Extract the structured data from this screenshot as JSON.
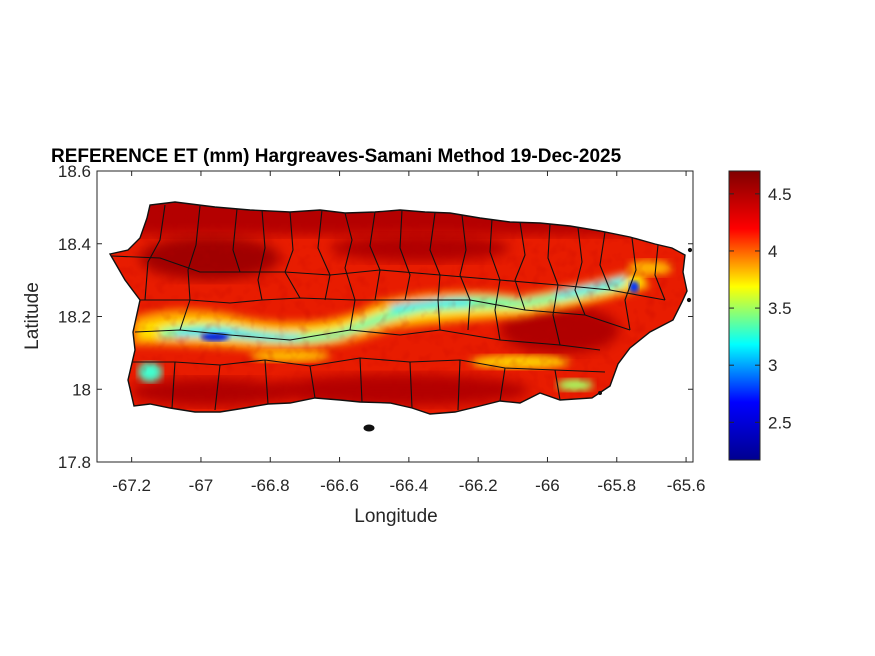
{
  "chart_data": {
    "type": "heatmap",
    "title": "REFERENCE ET (mm) Hargreaves-Samani Method  19-Dec-2025",
    "xlabel": "Longitude",
    "ylabel": "Latitude",
    "xlim": [
      -67.3,
      -65.58
    ],
    "ylim": [
      17.8,
      18.6
    ],
    "xticks": [
      {
        "value": -67.2,
        "label": "-67.2"
      },
      {
        "value": -67.0,
        "label": "-67"
      },
      {
        "value": -66.8,
        "label": "-66.8"
      },
      {
        "value": -66.6,
        "label": "-66.6"
      },
      {
        "value": -66.4,
        "label": "-66.4"
      },
      {
        "value": -66.2,
        "label": "-66.2"
      },
      {
        "value": -66.0,
        "label": "-66"
      },
      {
        "value": -65.8,
        "label": "-65.8"
      },
      {
        "value": -65.6,
        "label": "-65.6"
      }
    ],
    "yticks": [
      {
        "value": 17.8,
        "label": "17.8"
      },
      {
        "value": 18.0,
        "label": "18"
      },
      {
        "value": 18.2,
        "label": "18.2"
      },
      {
        "value": 18.4,
        "label": "18.4"
      },
      {
        "value": 18.6,
        "label": "18.6"
      }
    ],
    "colorbar": {
      "colormap": "jet",
      "range": [
        2.17,
        4.7
      ],
      "ticks": [
        {
          "value": 2.5,
          "label": "2.5"
        },
        {
          "value": 3.0,
          "label": "3"
        },
        {
          "value": 3.5,
          "label": "3.5"
        },
        {
          "value": 4.0,
          "label": "4"
        },
        {
          "value": 4.5,
          "label": "4.5"
        }
      ],
      "colors": [
        "#00008f",
        "#0000ff",
        "#00ffff",
        "#ffff00",
        "#ff0000",
        "#800000"
      ]
    },
    "grid": false,
    "region_outline": "Puerto Rico with municipality boundaries",
    "value_zones": [
      {
        "zone": "central cordillera band (west to east)",
        "value": 3.3
      },
      {
        "zone": "western interior low near -66.98, 18.14",
        "value": 2.3
      },
      {
        "zone": "eastern peak near -65.76, 18.27",
        "value": 2.4
      },
      {
        "zone": "south-central coast",
        "value": 4.4
      },
      {
        "zone": "north coast",
        "value": 4.5
      }
    ]
  }
}
